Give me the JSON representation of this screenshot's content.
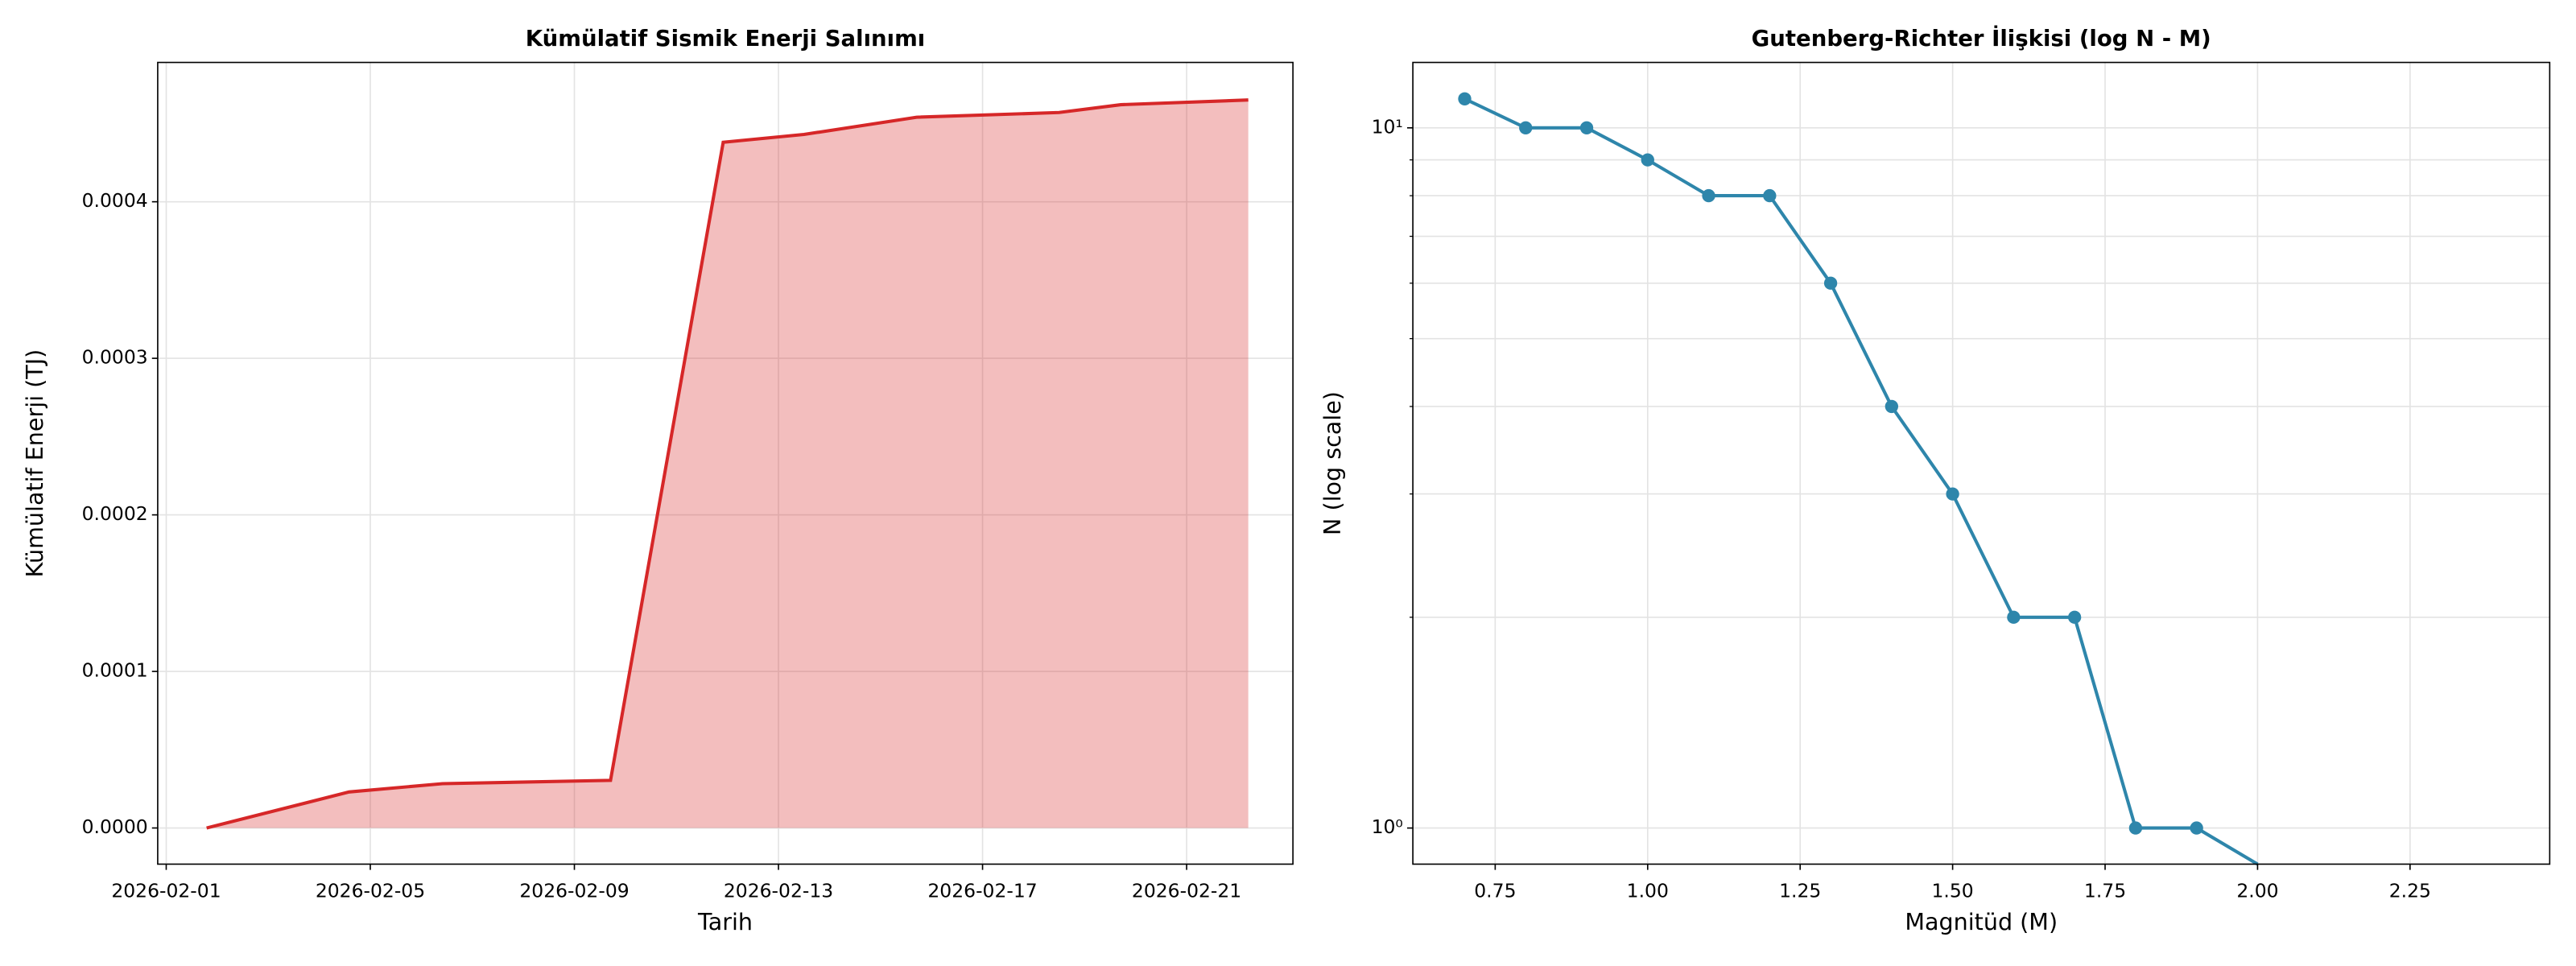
{
  "chart_data": [
    {
      "type": "area",
      "title": "Kümülatif Sismik Enerji Salınımı",
      "xlabel": "Tarih",
      "ylabel": "Kümülatif Enerji (TJ)",
      "x": [
        "2026-02-01T19:00",
        "2026-02-04T14:00",
        "2026-02-06T10:00",
        "2026-02-09T17:00",
        "2026-02-11T22:00",
        "2026-02-13T12:00",
        "2026-02-15T17:00",
        "2026-02-18T12:00",
        "2026-02-19T17:00",
        "2026-02-22T05:00"
      ],
      "series": [
        {
          "name": "Kümülatif Enerji",
          "color": "#d62728",
          "values": [
            0,
            2.3e-05,
            2.83e-05,
            3.04e-05,
            0.000438,
            0.000443,
            0.000454,
            0.000457,
            0.000462,
            0.000465
          ]
        }
      ],
      "xlim": [
        "2026-01-31T20:00",
        "2026-02-23T02:00"
      ],
      "xticks": [
        "2026-02-01",
        "2026-02-05",
        "2026-02-09",
        "2026-02-13",
        "2026-02-17",
        "2026-02-21"
      ],
      "ylim": [
        -2.31e-05,
        0.000489
      ],
      "yticks": [
        {
          "value": 0,
          "label": "0.0000"
        },
        {
          "value": 0.0001,
          "label": "0.0001"
        },
        {
          "value": 0.0002,
          "label": "0.0002"
        },
        {
          "value": 0.0003,
          "label": "0.0003"
        },
        {
          "value": 0.0004,
          "label": "0.0004"
        }
      ],
      "grid": true
    },
    {
      "type": "line",
      "title": "Gutenberg-Richter İlişkisi (log N - M)",
      "xlabel": "Magnitüd (M)",
      "ylabel": "N (log scale)",
      "x": [
        0.7,
        0.8,
        0.9,
        1.0,
        1.1,
        1.2,
        1.3,
        1.4,
        1.5,
        1.6,
        1.7,
        1.8,
        1.9,
        2.0
      ],
      "series": [
        {
          "name": "N",
          "color": "#2e86ab",
          "values": [
            11,
            10,
            10,
            9,
            8,
            8,
            6,
            4,
            3,
            2,
            2,
            1,
            1,
            0
          ]
        }
      ],
      "xlim": [
        0.615,
        2.479
      ],
      "xticks": [
        {
          "value": 0.75,
          "label": "0.75"
        },
        {
          "value": 1,
          "label": "1.00"
        },
        {
          "value": 1.25,
          "label": "1.25"
        },
        {
          "value": 1.5,
          "label": "1.50"
        },
        {
          "value": 1.75,
          "label": "1.75"
        },
        {
          "value": 2,
          "label": "2.00"
        },
        {
          "value": 2.25,
          "label": "2.25"
        }
      ],
      "ylim": [
        0.888,
        12.4
      ],
      "yscale": "log",
      "yticks": [
        {
          "value": 1,
          "label": "10⁰"
        },
        {
          "value": 10,
          "label": "10¹"
        }
      ],
      "yminorticks": [
        2,
        3,
        4,
        5,
        6,
        7,
        8,
        9
      ],
      "grid": true
    }
  ]
}
